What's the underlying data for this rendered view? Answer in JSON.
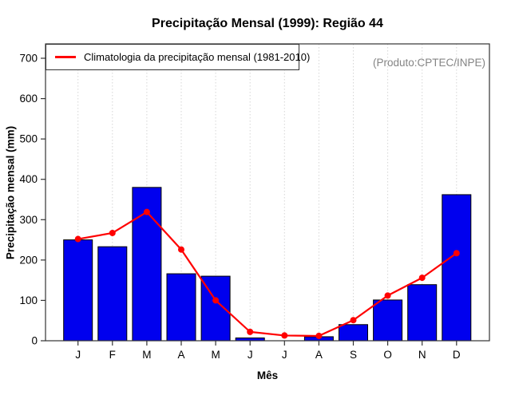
{
  "chart_data": {
    "type": "bar",
    "title": "Precipitação Mensal (1999): Região 44",
    "xlabel": "Mês",
    "ylabel": "Precipitação mensal (mm)",
    "categories": [
      "J",
      "F",
      "M",
      "A",
      "M",
      "J",
      "J",
      "A",
      "S",
      "O",
      "N",
      "D"
    ],
    "series": [
      {
        "type": "bar",
        "color": "#0000EE",
        "values": [
          250,
          233,
          380,
          166,
          160,
          7,
          0,
          10,
          40,
          101,
          139,
          362
        ]
      },
      {
        "type": "line",
        "name": "Climatologia da precipitação mensal (1981-2010)",
        "color": "#FF0000",
        "values": [
          252,
          267,
          319,
          226,
          100,
          22,
          13,
          12,
          51,
          112,
          156,
          217
        ]
      }
    ],
    "ylim": [
      0,
      700
    ],
    "yticks": [
      0,
      100,
      200,
      300,
      400,
      500,
      600,
      700
    ],
    "grid": "vertical-dotted",
    "grid_color": "#D6D6D6",
    "axis_color": "#333333",
    "legend": {
      "position": "top-left",
      "label": "Climatologia da precipitação mensal (1981-2010)"
    },
    "annotation": "(Produto:CPTEC/INPE)",
    "annotation_color": "#848484"
  }
}
